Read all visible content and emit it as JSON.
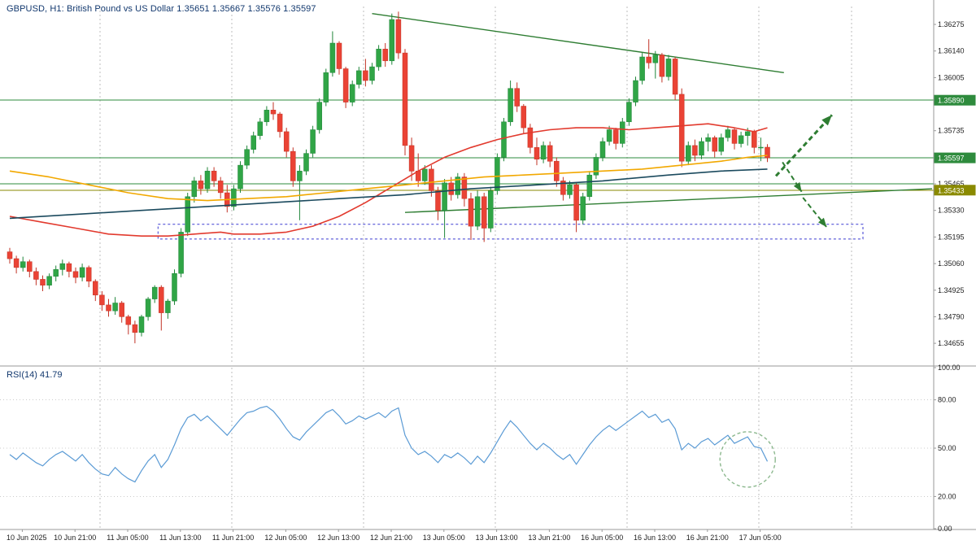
{
  "window": {
    "title": "GBPUSD, H1: British Pound vs US Dollar 1.35651 1.35667 1.35576 1.35597"
  },
  "colors": {
    "up_fill": "#30a546",
    "up_stroke": "#20863a",
    "down_fill": "#ea4335",
    "down_stroke": "#c23326",
    "ma_red": "#e23a2e",
    "ma_orange": "#f2a800",
    "ma_navy": "#1b4a5e",
    "level_green": "#2e8b3d",
    "level_olive": "#8a8a00",
    "trend_green": "#2e7d32",
    "arrow_green": "#2e7d32",
    "rect_blue": "#3a3ad1",
    "rsi_line": "#5b9bd5",
    "grid": "#bdbdbd",
    "guide": "#cccccc",
    "axis_text": "#222222",
    "badge_text": "#ffffff",
    "separator": "#9a9a9a"
  },
  "chart_data": {
    "type": "candlestick",
    "symbol": "GBPUSD",
    "timeframe": "H1",
    "description": "British Pound vs US Dollar",
    "current_ohlc": {
      "open": "1.35651",
      "high": "1.35667",
      "low": "1.35576",
      "close": "1.35597"
    },
    "ylim": [
      1.34548,
      1.36366
    ],
    "price_axis_labels": [
      {
        "text": "1.36275",
        "price": 1.36275
      },
      {
        "text": "1.36140",
        "price": 1.3614
      },
      {
        "text": "1.36005",
        "price": 1.36005
      },
      {
        "text": "1.35735",
        "price": 1.35735
      },
      {
        "text": "1.35465",
        "price": 1.35465
      },
      {
        "text": "1.35330",
        "price": 1.3533
      },
      {
        "text": "1.35195",
        "price": 1.35195
      },
      {
        "text": "1.35060",
        "price": 1.3506
      },
      {
        "text": "1.34925",
        "price": 1.34925
      },
      {
        "text": "1.34790",
        "price": 1.3479
      },
      {
        "text": "1.34655",
        "price": 1.34655
      }
    ],
    "price_badges": [
      {
        "text": "1.35890",
        "price": 1.3589,
        "color_key": "level_green"
      },
      {
        "text": "1.35597",
        "price": 1.35597,
        "color_key": "level_green"
      },
      {
        "text": "1.35433",
        "price": 1.35433,
        "color_key": "level_olive"
      }
    ],
    "levels": [
      {
        "name": "resistance-1.35890",
        "price": 1.3589,
        "color_key": "level_green"
      },
      {
        "name": "level-1.35597",
        "price": 1.35597,
        "color_key": "level_green"
      },
      {
        "name": "support-1.35465",
        "price": 1.35465,
        "color_key": "level_green"
      },
      {
        "name": "support-1.35433",
        "price": 1.35433,
        "color_key": "level_olive"
      }
    ],
    "candles": [
      [
        1.3512,
        1.3514,
        1.3506,
        1.35085
      ],
      [
        1.35085,
        1.351,
        1.3501,
        1.3504
      ],
      [
        1.3504,
        1.35095,
        1.3502,
        1.3507
      ],
      [
        1.3507,
        1.3508,
        1.3499,
        1.3502
      ],
      [
        1.3502,
        1.3504,
        1.3495,
        1.3498
      ],
      [
        1.3498,
        1.35,
        1.3492,
        1.3495
      ],
      [
        1.3495,
        1.3501,
        1.3493,
        1.34995
      ],
      [
        1.34995,
        1.3505,
        1.3497,
        1.3503
      ],
      [
        1.3503,
        1.3508,
        1.35,
        1.3506
      ],
      [
        1.3506,
        1.3507,
        1.3499,
        1.3502
      ],
      [
        1.3502,
        1.3504,
        1.3496,
        1.3499
      ],
      [
        1.3499,
        1.3506,
        1.3497,
        1.3504
      ],
      [
        1.3504,
        1.3505,
        1.3494,
        1.3497
      ],
      [
        1.3497,
        1.3498,
        1.3487,
        1.349
      ],
      [
        1.349,
        1.3492,
        1.3482,
        1.3485
      ],
      [
        1.3485,
        1.3488,
        1.3479,
        1.3482
      ],
      [
        1.3482,
        1.3489,
        1.348,
        1.3486
      ],
      [
        1.3486,
        1.3487,
        1.3476,
        1.3479
      ],
      [
        1.3479,
        1.348,
        1.347,
        1.3475
      ],
      [
        1.3475,
        1.3477,
        1.34655,
        1.3471
      ],
      [
        1.3471,
        1.348,
        1.3469,
        1.3479
      ],
      [
        1.3479,
        1.3489,
        1.3477,
        1.3488
      ],
      [
        1.3488,
        1.3495,
        1.3486,
        1.3494
      ],
      [
        1.3494,
        1.3495,
        1.3472,
        1.3481
      ],
      [
        1.3481,
        1.3488,
        1.3478,
        1.3487
      ],
      [
        1.3487,
        1.3503,
        1.3485,
        1.3501
      ],
      [
        1.3501,
        1.3524,
        1.3499,
        1.3522
      ],
      [
        1.3522,
        1.3542,
        1.352,
        1.354
      ],
      [
        1.354,
        1.355,
        1.3537,
        1.3548
      ],
      [
        1.3548,
        1.3551,
        1.3541,
        1.3544
      ],
      [
        1.3544,
        1.3555,
        1.3542,
        1.3553
      ],
      [
        1.3553,
        1.3555,
        1.3545,
        1.3548
      ],
      [
        1.3548,
        1.355,
        1.3539,
        1.3542
      ],
      [
        1.3542,
        1.3546,
        1.3532,
        1.3535
      ],
      [
        1.3535,
        1.3546,
        1.3533,
        1.3544
      ],
      [
        1.3544,
        1.3558,
        1.3542,
        1.3556
      ],
      [
        1.3556,
        1.3566,
        1.3554,
        1.3564
      ],
      [
        1.3564,
        1.3573,
        1.3562,
        1.3571
      ],
      [
        1.3571,
        1.358,
        1.3569,
        1.3578
      ],
      [
        1.3578,
        1.3586,
        1.3576,
        1.3584
      ],
      [
        1.3584,
        1.3588,
        1.3579,
        1.3582
      ],
      [
        1.3582,
        1.3583,
        1.357,
        1.3573
      ],
      [
        1.3573,
        1.3575,
        1.356,
        1.3563
      ],
      [
        1.3563,
        1.3565,
        1.3545,
        1.3548
      ],
      [
        1.3548,
        1.3556,
        1.3528,
        1.3553
      ],
      [
        1.3553,
        1.3564,
        1.3551,
        1.3562
      ],
      [
        1.3562,
        1.3576,
        1.356,
        1.3574
      ],
      [
        1.3574,
        1.359,
        1.3572,
        1.3588
      ],
      [
        1.3588,
        1.3605,
        1.3586,
        1.3603
      ],
      [
        1.3603,
        1.3624,
        1.3601,
        1.3618
      ],
      [
        1.3618,
        1.3619,
        1.3602,
        1.3605
      ],
      [
        1.3605,
        1.3606,
        1.3585,
        1.3588
      ],
      [
        1.3588,
        1.3599,
        1.3586,
        1.3597
      ],
      [
        1.3597,
        1.3606,
        1.3595,
        1.3604
      ],
      [
        1.3604,
        1.361,
        1.3596,
        1.3599
      ],
      [
        1.3599,
        1.3608,
        1.3597,
        1.3606
      ],
      [
        1.3606,
        1.3617,
        1.3604,
        1.3615
      ],
      [
        1.3615,
        1.3618,
        1.3606,
        1.3609
      ],
      [
        1.3609,
        1.3633,
        1.3607,
        1.363
      ],
      [
        1.363,
        1.3634,
        1.361,
        1.3613
      ],
      [
        1.3613,
        1.3615,
        1.3561,
        1.3566
      ],
      [
        1.3566,
        1.357,
        1.3548,
        1.3553
      ],
      [
        1.3553,
        1.3562,
        1.3545,
        1.3548
      ],
      [
        1.3548,
        1.3556,
        1.3546,
        1.3554
      ],
      [
        1.3554,
        1.3556,
        1.354,
        1.3543
      ],
      [
        1.3543,
        1.3545,
        1.3528,
        1.3533
      ],
      [
        1.3533,
        1.3549,
        1.3519,
        1.3547
      ],
      [
        1.3547,
        1.355,
        1.3538,
        1.3541
      ],
      [
        1.3541,
        1.3552,
        1.3539,
        1.355
      ],
      [
        1.355,
        1.3552,
        1.3535,
        1.3539
      ],
      [
        1.3539,
        1.3542,
        1.3518,
        1.3525
      ],
      [
        1.3525,
        1.3543,
        1.3523,
        1.354
      ],
      [
        1.354,
        1.3542,
        1.3517,
        1.3524
      ],
      [
        1.3524,
        1.3545,
        1.3522,
        1.3543
      ],
      [
        1.3543,
        1.3562,
        1.3541,
        1.356
      ],
      [
        1.356,
        1.358,
        1.3558,
        1.3578
      ],
      [
        1.3578,
        1.3599,
        1.3576,
        1.3595
      ],
      [
        1.3595,
        1.3598,
        1.3583,
        1.3586
      ],
      [
        1.3586,
        1.3587,
        1.3572,
        1.3575
      ],
      [
        1.3575,
        1.3577,
        1.3562,
        1.3565
      ],
      [
        1.3565,
        1.357,
        1.3556,
        1.3559
      ],
      [
        1.3559,
        1.3568,
        1.3557,
        1.3566
      ],
      [
        1.3566,
        1.3568,
        1.3555,
        1.3558
      ],
      [
        1.3558,
        1.356,
        1.3545,
        1.3548
      ],
      [
        1.3548,
        1.355,
        1.3538,
        1.3541
      ],
      [
        1.3541,
        1.3548,
        1.3539,
        1.3546
      ],
      [
        1.3546,
        1.3547,
        1.3522,
        1.3528
      ],
      [
        1.3528,
        1.3542,
        1.3526,
        1.354
      ],
      [
        1.354,
        1.3553,
        1.3538,
        1.3551
      ],
      [
        1.3551,
        1.3562,
        1.3549,
        1.356
      ],
      [
        1.356,
        1.357,
        1.3558,
        1.3568
      ],
      [
        1.3568,
        1.3576,
        1.3566,
        1.3574
      ],
      [
        1.3574,
        1.3575,
        1.3564,
        1.3567
      ],
      [
        1.3567,
        1.358,
        1.3565,
        1.3578
      ],
      [
        1.3578,
        1.359,
        1.3576,
        1.3588
      ],
      [
        1.3588,
        1.3601,
        1.3586,
        1.3599
      ],
      [
        1.3599,
        1.3613,
        1.3597,
        1.3611
      ],
      [
        1.3611,
        1.362,
        1.3605,
        1.3608
      ],
      [
        1.3608,
        1.3614,
        1.36,
        1.3612
      ],
      [
        1.3612,
        1.3613,
        1.3598,
        1.3601
      ],
      [
        1.3601,
        1.3612,
        1.3599,
        1.361
      ],
      [
        1.361,
        1.3611,
        1.3589,
        1.3592
      ],
      [
        1.3592,
        1.3595,
        1.3555,
        1.3558
      ],
      [
        1.3558,
        1.3568,
        1.3556,
        1.3566
      ],
      [
        1.3566,
        1.3569,
        1.3558,
        1.3561
      ],
      [
        1.3561,
        1.357,
        1.3559,
        1.3568
      ],
      [
        1.3568,
        1.3572,
        1.3563,
        1.357
      ],
      [
        1.357,
        1.3571,
        1.356,
        1.3563
      ],
      [
        1.3563,
        1.3572,
        1.3561,
        1.357
      ],
      [
        1.357,
        1.3576,
        1.3568,
        1.3574
      ],
      [
        1.3574,
        1.3575,
        1.3564,
        1.3567
      ],
      [
        1.3567,
        1.3573,
        1.3565,
        1.3571
      ],
      [
        1.3571,
        1.3575,
        1.3566,
        1.3573
      ],
      [
        1.3573,
        1.3574,
        1.3562,
        1.3565
      ],
      [
        1.3565,
        1.357,
        1.3558,
        1.35651
      ],
      [
        1.35651,
        1.35667,
        1.35576,
        1.35597
      ]
    ],
    "moving_averages": [
      {
        "name": "ma-red",
        "color_key": "ma_red",
        "points": [
          [
            0,
            1.353
          ],
          [
            5,
            1.3527
          ],
          [
            10,
            1.3524
          ],
          [
            15,
            1.3521
          ],
          [
            20,
            1.352
          ],
          [
            24,
            1.352
          ],
          [
            28,
            1.3521
          ],
          [
            32,
            1.3522
          ],
          [
            34,
            1.3521
          ],
          [
            38,
            1.3521
          ],
          [
            42,
            1.3522
          ],
          [
            46,
            1.3525
          ],
          [
            50,
            1.353
          ],
          [
            54,
            1.3537
          ],
          [
            58,
            1.3545
          ],
          [
            62,
            1.3553
          ],
          [
            66,
            1.356
          ],
          [
            70,
            1.3565
          ],
          [
            74,
            1.3569
          ],
          [
            78,
            1.3572
          ],
          [
            82,
            1.3574
          ],
          [
            86,
            1.3575
          ],
          [
            90,
            1.3575
          ],
          [
            94,
            1.3574
          ],
          [
            98,
            1.3575
          ],
          [
            102,
            1.3576
          ],
          [
            106,
            1.3577
          ],
          [
            110,
            1.3575
          ],
          [
            113,
            1.3573
          ],
          [
            115,
            1.3575
          ]
        ]
      },
      {
        "name": "ma-orange",
        "color_key": "ma_orange",
        "points": [
          [
            0,
            1.3553
          ],
          [
            6,
            1.355
          ],
          [
            12,
            1.3546
          ],
          [
            18,
            1.3542
          ],
          [
            24,
            1.3539
          ],
          [
            30,
            1.3538
          ],
          [
            36,
            1.3539
          ],
          [
            42,
            1.354
          ],
          [
            48,
            1.3542
          ],
          [
            54,
            1.3544
          ],
          [
            60,
            1.3546
          ],
          [
            66,
            1.3548
          ],
          [
            72,
            1.355
          ],
          [
            78,
            1.3551
          ],
          [
            84,
            1.3552
          ],
          [
            90,
            1.3553
          ],
          [
            96,
            1.3554
          ],
          [
            102,
            1.3556
          ],
          [
            108,
            1.3558
          ],
          [
            112,
            1.356
          ],
          [
            115,
            1.3561
          ]
        ]
      },
      {
        "name": "ma-navy",
        "color_key": "ma_navy",
        "points": [
          [
            0,
            1.3529
          ],
          [
            10,
            1.3531
          ],
          [
            20,
            1.3533
          ],
          [
            30,
            1.3535
          ],
          [
            40,
            1.3537
          ],
          [
            50,
            1.3539
          ],
          [
            60,
            1.3541
          ],
          [
            70,
            1.3544
          ],
          [
            80,
            1.3546
          ],
          [
            90,
            1.3548
          ],
          [
            100,
            1.3551
          ],
          [
            108,
            1.3553
          ],
          [
            115,
            1.3554
          ]
        ]
      }
    ],
    "trendlines": [
      {
        "name": "descending-trendline",
        "from": [
          55,
          1.3633
        ],
        "to": [
          117.5,
          1.3603
        ]
      },
      {
        "name": "ascending-trendline",
        "from": [
          60,
          1.3532
        ],
        "to": [
          140,
          1.3544
        ]
      }
    ],
    "rectangle": {
      "name": "demand-zone-rectangle",
      "from_idx": 22.5,
      "to_idx": 129.5,
      "top": 1.3526,
      "bottom": 1.35185
    },
    "arrows": [
      {
        "name": "up-arrow",
        "from": [
          116.3,
          1.35505
        ],
        "to": [
          124.8,
          1.35815
        ],
        "width": 3
      },
      {
        "name": "down-arrow-1",
        "from": [
          117.3,
          1.35575
        ],
        "to": [
          120.2,
          1.35425
        ],
        "width": 2
      },
      {
        "name": "down-arrow-2",
        "from": [
          120.4,
          1.35395
        ],
        "to": [
          124.0,
          1.35245
        ],
        "width": 2
      }
    ],
    "grid_x_indices": [
      13.7,
      33.7,
      53.7,
      73.7,
      93.7,
      113.7,
      127.8
    ],
    "time_labels": [
      "10 Jun 2025",
      "10 Jun 21:00",
      "11 Jun 05:00",
      "11 Jun 13:00",
      "11 Jun 21:00",
      "12 Jun 05:00",
      "12 Jun 13:00",
      "12 Jun 21:00",
      "13 Jun 05:00",
      "13 Jun 13:00",
      "13 Jun 21:00",
      "16 Jun 05:00",
      "16 Jun 13:00",
      "16 Jun 21:00",
      "17 Jun 05:00"
    ],
    "rsi": {
      "label": "RSI(14) 41.79",
      "period": 14,
      "current": 41.79,
      "ylim": [
        0,
        100
      ],
      "axis_labels": [
        {
          "text": "100.00",
          "value": 100
        },
        {
          "text": "80.00",
          "value": 80
        },
        {
          "text": "50.00",
          "value": 50
        },
        {
          "text": "20.00",
          "value": 20
        },
        {
          "text": "0.00",
          "value": 0
        }
      ],
      "guide_levels": [
        80,
        50,
        20
      ],
      "values": [
        46,
        43,
        47,
        44,
        41,
        39,
        43,
        46,
        48,
        45,
        42,
        46,
        41,
        37,
        34,
        33,
        38,
        34,
        31,
        29,
        36,
        42,
        46,
        38,
        43,
        52,
        62,
        69,
        71,
        67,
        70,
        66,
        62,
        58,
        63,
        68,
        72,
        73,
        75,
        76,
        73,
        68,
        62,
        57,
        55,
        60,
        64,
        68,
        72,
        74,
        70,
        65,
        67,
        70,
        68,
        70,
        72,
        69,
        73,
        75,
        58,
        50,
        46,
        48,
        45,
        41,
        46,
        44,
        47,
        44,
        40,
        45,
        41,
        47,
        54,
        61,
        67,
        63,
        58,
        53,
        49,
        53,
        50,
        46,
        43,
        46,
        40,
        46,
        52,
        57,
        61,
        64,
        61,
        64,
        67,
        70,
        73,
        69,
        71,
        66,
        68,
        62,
        49,
        53,
        50,
        54,
        56,
        52,
        55,
        58,
        53,
        55,
        57,
        51,
        50,
        41.79
      ],
      "circle": {
        "name": "rsi-highlight-circle",
        "idx": 112,
        "value": 43,
        "radius": 34
      }
    }
  }
}
